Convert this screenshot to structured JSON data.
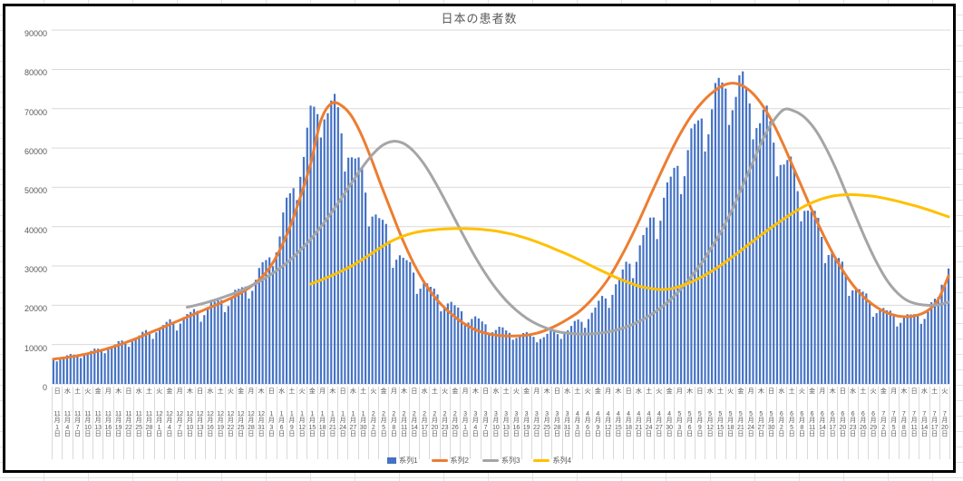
{
  "chart_data": {
    "type": "combo-bar-line",
    "title": "日本の患者数",
    "daily_points": 262,
    "anchor_step_days": 3,
    "y_axis": {
      "min": 0,
      "max": 90000,
      "step": 10000,
      "grid": true,
      "tick_labels": [
        "0",
        "10000",
        "20000",
        "30000",
        "40000",
        "50000",
        "60000",
        "70000",
        "80000",
        "90000"
      ]
    },
    "x_axis": {
      "tick_interval_days": 3,
      "labels": [
        {
          "w": "日",
          "m": "11",
          "d": "1"
        },
        {
          "w": "水",
          "m": "11",
          "d": "4"
        },
        {
          "w": "土",
          "m": "11",
          "d": "7"
        },
        {
          "w": "火",
          "m": "11",
          "d": "10"
        },
        {
          "w": "金",
          "m": "11",
          "d": "13"
        },
        {
          "w": "月",
          "m": "11",
          "d": "16"
        },
        {
          "w": "木",
          "m": "11",
          "d": "19"
        },
        {
          "w": "日",
          "m": "11",
          "d": "22"
        },
        {
          "w": "水",
          "m": "11",
          "d": "25"
        },
        {
          "w": "土",
          "m": "11",
          "d": "28"
        },
        {
          "w": "火",
          "m": "12",
          "d": "1"
        },
        {
          "w": "金",
          "m": "12",
          "d": "4"
        },
        {
          "w": "月",
          "m": "12",
          "d": "7"
        },
        {
          "w": "木",
          "m": "12",
          "d": "10"
        },
        {
          "w": "日",
          "m": "12",
          "d": "13"
        },
        {
          "w": "水",
          "m": "12",
          "d": "16"
        },
        {
          "w": "土",
          "m": "12",
          "d": "19"
        },
        {
          "w": "火",
          "m": "12",
          "d": "22"
        },
        {
          "w": "金",
          "m": "12",
          "d": "25"
        },
        {
          "w": "月",
          "m": "12",
          "d": "28"
        },
        {
          "w": "木",
          "m": "12",
          "d": "31"
        },
        {
          "w": "日",
          "m": "1",
          "d": "3"
        },
        {
          "w": "水",
          "m": "1",
          "d": "6"
        },
        {
          "w": "土",
          "m": "1",
          "d": "9"
        },
        {
          "w": "火",
          "m": "1",
          "d": "12"
        },
        {
          "w": "金",
          "m": "1",
          "d": "15"
        },
        {
          "w": "月",
          "m": "1",
          "d": "18"
        },
        {
          "w": "木",
          "m": "1",
          "d": "21"
        },
        {
          "w": "日",
          "m": "1",
          "d": "24"
        },
        {
          "w": "水",
          "m": "1",
          "d": "27"
        },
        {
          "w": "土",
          "m": "1",
          "d": "30"
        },
        {
          "w": "火",
          "m": "2",
          "d": "2"
        },
        {
          "w": "金",
          "m": "2",
          "d": "5"
        },
        {
          "w": "月",
          "m": "2",
          "d": "8"
        },
        {
          "w": "木",
          "m": "2",
          "d": "11"
        },
        {
          "w": "日",
          "m": "2",
          "d": "14"
        },
        {
          "w": "水",
          "m": "2",
          "d": "17"
        },
        {
          "w": "土",
          "m": "2",
          "d": "20"
        },
        {
          "w": "火",
          "m": "2",
          "d": "23"
        },
        {
          "w": "金",
          "m": "2",
          "d": "26"
        },
        {
          "w": "月",
          "m": "3",
          "d": "1"
        },
        {
          "w": "木",
          "m": "3",
          "d": "4"
        },
        {
          "w": "日",
          "m": "3",
          "d": "7"
        },
        {
          "w": "水",
          "m": "3",
          "d": "10"
        },
        {
          "w": "土",
          "m": "3",
          "d": "13"
        },
        {
          "w": "火",
          "m": "3",
          "d": "16"
        },
        {
          "w": "金",
          "m": "3",
          "d": "19"
        },
        {
          "w": "月",
          "m": "3",
          "d": "22"
        },
        {
          "w": "木",
          "m": "3",
          "d": "25"
        },
        {
          "w": "日",
          "m": "3",
          "d": "28"
        },
        {
          "w": "水",
          "m": "3",
          "d": "31"
        },
        {
          "w": "土",
          "m": "4",
          "d": "3"
        },
        {
          "w": "火",
          "m": "4",
          "d": "6"
        },
        {
          "w": "金",
          "m": "4",
          "d": "9"
        },
        {
          "w": "月",
          "m": "4",
          "d": "12"
        },
        {
          "w": "木",
          "m": "4",
          "d": "15"
        },
        {
          "w": "日",
          "m": "4",
          "d": "18"
        },
        {
          "w": "水",
          "m": "4",
          "d": "21"
        },
        {
          "w": "土",
          "m": "4",
          "d": "24"
        },
        {
          "w": "火",
          "m": "4",
          "d": "27"
        },
        {
          "w": "金",
          "m": "4",
          "d": "30"
        },
        {
          "w": "月",
          "m": "5",
          "d": "3"
        },
        {
          "w": "木",
          "m": "5",
          "d": "6"
        },
        {
          "w": "日",
          "m": "5",
          "d": "9"
        },
        {
          "w": "水",
          "m": "5",
          "d": "12"
        },
        {
          "w": "土",
          "m": "5",
          "d": "15"
        },
        {
          "w": "火",
          "m": "5",
          "d": "18"
        },
        {
          "w": "金",
          "m": "5",
          "d": "21"
        },
        {
          "w": "月",
          "m": "5",
          "d": "24"
        },
        {
          "w": "木",
          "m": "5",
          "d": "27"
        },
        {
          "w": "日",
          "m": "5",
          "d": "30"
        },
        {
          "w": "水",
          "m": "6",
          "d": "2"
        },
        {
          "w": "土",
          "m": "6",
          "d": "5"
        },
        {
          "w": "火",
          "m": "6",
          "d": "8"
        },
        {
          "w": "金",
          "m": "6",
          "d": "11"
        },
        {
          "w": "月",
          "m": "6",
          "d": "14"
        },
        {
          "w": "木",
          "m": "6",
          "d": "17"
        },
        {
          "w": "日",
          "m": "6",
          "d": "20"
        },
        {
          "w": "水",
          "m": "6",
          "d": "23"
        },
        {
          "w": "土",
          "m": "6",
          "d": "26"
        },
        {
          "w": "火",
          "m": "6",
          "d": "29"
        },
        {
          "w": "金",
          "m": "7",
          "d": "2"
        },
        {
          "w": "月",
          "m": "7",
          "d": "5"
        },
        {
          "w": "木",
          "m": "7",
          "d": "8"
        },
        {
          "w": "日",
          "m": "7",
          "d": "11"
        },
        {
          "w": "水",
          "m": "7",
          "d": "14"
        },
        {
          "w": "土",
          "m": "7",
          "d": "17"
        },
        {
          "w": "火",
          "m": "7",
          "d": "20"
        }
      ]
    },
    "series": [
      {
        "name": "系列1",
        "type": "bar",
        "color": "#4472C4",
        "weekly_factors": [
          1.0,
          0.86,
          0.93,
          0.99,
          1.04,
          1.06,
          1.05
        ],
        "anchors": [
          6400,
          6800,
          7200,
          7700,
          8300,
          9000,
          9800,
          10700,
          11700,
          12800,
          13900,
          15000,
          16100,
          17200,
          18300,
          19400,
          20500,
          21700,
          23100,
          25000,
          27800,
          32000,
          38500,
          47000,
          56500,
          65500,
          72000,
          70000,
          65000,
          58500,
          51500,
          45000,
          39500,
          35000,
          31200,
          28000,
          25300,
          23000,
          21000,
          19200,
          17600,
          16200,
          15000,
          14000,
          13200,
          12600,
          12200,
          12100,
          12300,
          12900,
          13900,
          15400,
          17400,
          19900,
          22900,
          26400,
          30400,
          34900,
          39900,
          45200,
          50700,
          56200,
          61400,
          66500,
          71000,
          74500,
          75500,
          74000,
          71000,
          67000,
          62500,
          57200,
          51800,
          46400,
          41200,
          36200,
          31700,
          27700,
          24300,
          21600,
          19500,
          18000,
          17100,
          16800,
          17200,
          18600,
          21500,
          32000
        ]
      },
      {
        "name": "系列2",
        "type": "line",
        "color": "#ED7D31",
        "anchors": [
          6300,
          6600,
          7000,
          7500,
          8100,
          8800,
          9600,
          10500,
          11500,
          12600,
          13700,
          14800,
          15900,
          17000,
          18100,
          19200,
          20300,
          21500,
          22800,
          24400,
          26500,
          29500,
          34000,
          40000,
          47500,
          56000,
          67000,
          71300,
          70800,
          68000,
          63000,
          56500,
          49500,
          42800,
          36300,
          30700,
          26000,
          22300,
          19400,
          17100,
          15200,
          13800,
          12900,
          12400,
          12200,
          12200,
          12400,
          12900,
          13800,
          15000,
          16500,
          18200,
          20600,
          23500,
          27000,
          31500,
          36500,
          42000,
          47800,
          53500,
          59000,
          64000,
          68200,
          71500,
          74000,
          75800,
          76500,
          75800,
          73800,
          70500,
          66000,
          60500,
          54500,
          48500,
          42500,
          37000,
          32000,
          27700,
          24200,
          21500,
          19500,
          18100,
          17300,
          17100,
          17500,
          18700,
          21500,
          27500
        ]
      },
      {
        "name": "系列3",
        "type": "line",
        "color": "#A5A5A5",
        "anchors": [
          null,
          null,
          null,
          null,
          null,
          null,
          null,
          null,
          null,
          null,
          null,
          null,
          null,
          19500,
          20100,
          20800,
          21600,
          22500,
          23500,
          24700,
          26000,
          27600,
          29400,
          31500,
          34000,
          36800,
          40000,
          43500,
          47300,
          51200,
          55000,
          58300,
          60700,
          61700,
          61200,
          59200,
          56000,
          51800,
          47000,
          42000,
          37000,
          32300,
          28000,
          24300,
          21200,
          18700,
          16700,
          15200,
          14100,
          13300,
          12900,
          12700,
          12700,
          12900,
          13300,
          13900,
          14800,
          16000,
          17500,
          19300,
          21500,
          24200,
          27300,
          30800,
          34800,
          39300,
          44500,
          50500,
          56500,
          62500,
          67000,
          69800,
          69400,
          67800,
          64800,
          60400,
          55000,
          48800,
          42500,
          36400,
          30900,
          26400,
          23200,
          21200,
          20300,
          20000,
          20100,
          20800
        ]
      },
      {
        "name": "系列4",
        "type": "line",
        "color": "#FFC000",
        "anchors": [
          null,
          null,
          null,
          null,
          null,
          null,
          null,
          null,
          null,
          null,
          null,
          null,
          null,
          null,
          null,
          null,
          null,
          null,
          null,
          null,
          null,
          null,
          null,
          null,
          null,
          25400,
          26400,
          27500,
          28700,
          30000,
          31600,
          33300,
          35000,
          36500,
          37600,
          38400,
          38900,
          39200,
          39400,
          39500,
          39500,
          39400,
          39200,
          38900,
          38400,
          37800,
          37000,
          36100,
          35100,
          34000,
          32900,
          31700,
          30400,
          29100,
          27900,
          26700,
          25700,
          24800,
          24300,
          24000,
          24200,
          24900,
          25900,
          27200,
          28700,
          30400,
          32300,
          34300,
          36300,
          38300,
          40200,
          42000,
          43700,
          45200,
          46400,
          47300,
          47900,
          48100,
          48100,
          47900,
          47600,
          47100,
          46500,
          45800,
          45100,
          44300,
          43400,
          42500
        ]
      }
    ],
    "legend": {
      "position": "bottom",
      "items": [
        "系列1",
        "系列2",
        "系列3",
        "系列4"
      ]
    }
  },
  "colors": {
    "bar": "#4472C4",
    "line2": "#ED7D31",
    "line3": "#A5A5A5",
    "line4": "#FFC000",
    "gridline": "#D9D9D9",
    "axis_text": "#595959",
    "title_text": "#595959",
    "frame_border": "#000000",
    "sheet_gridline": "#dfe3e7"
  }
}
